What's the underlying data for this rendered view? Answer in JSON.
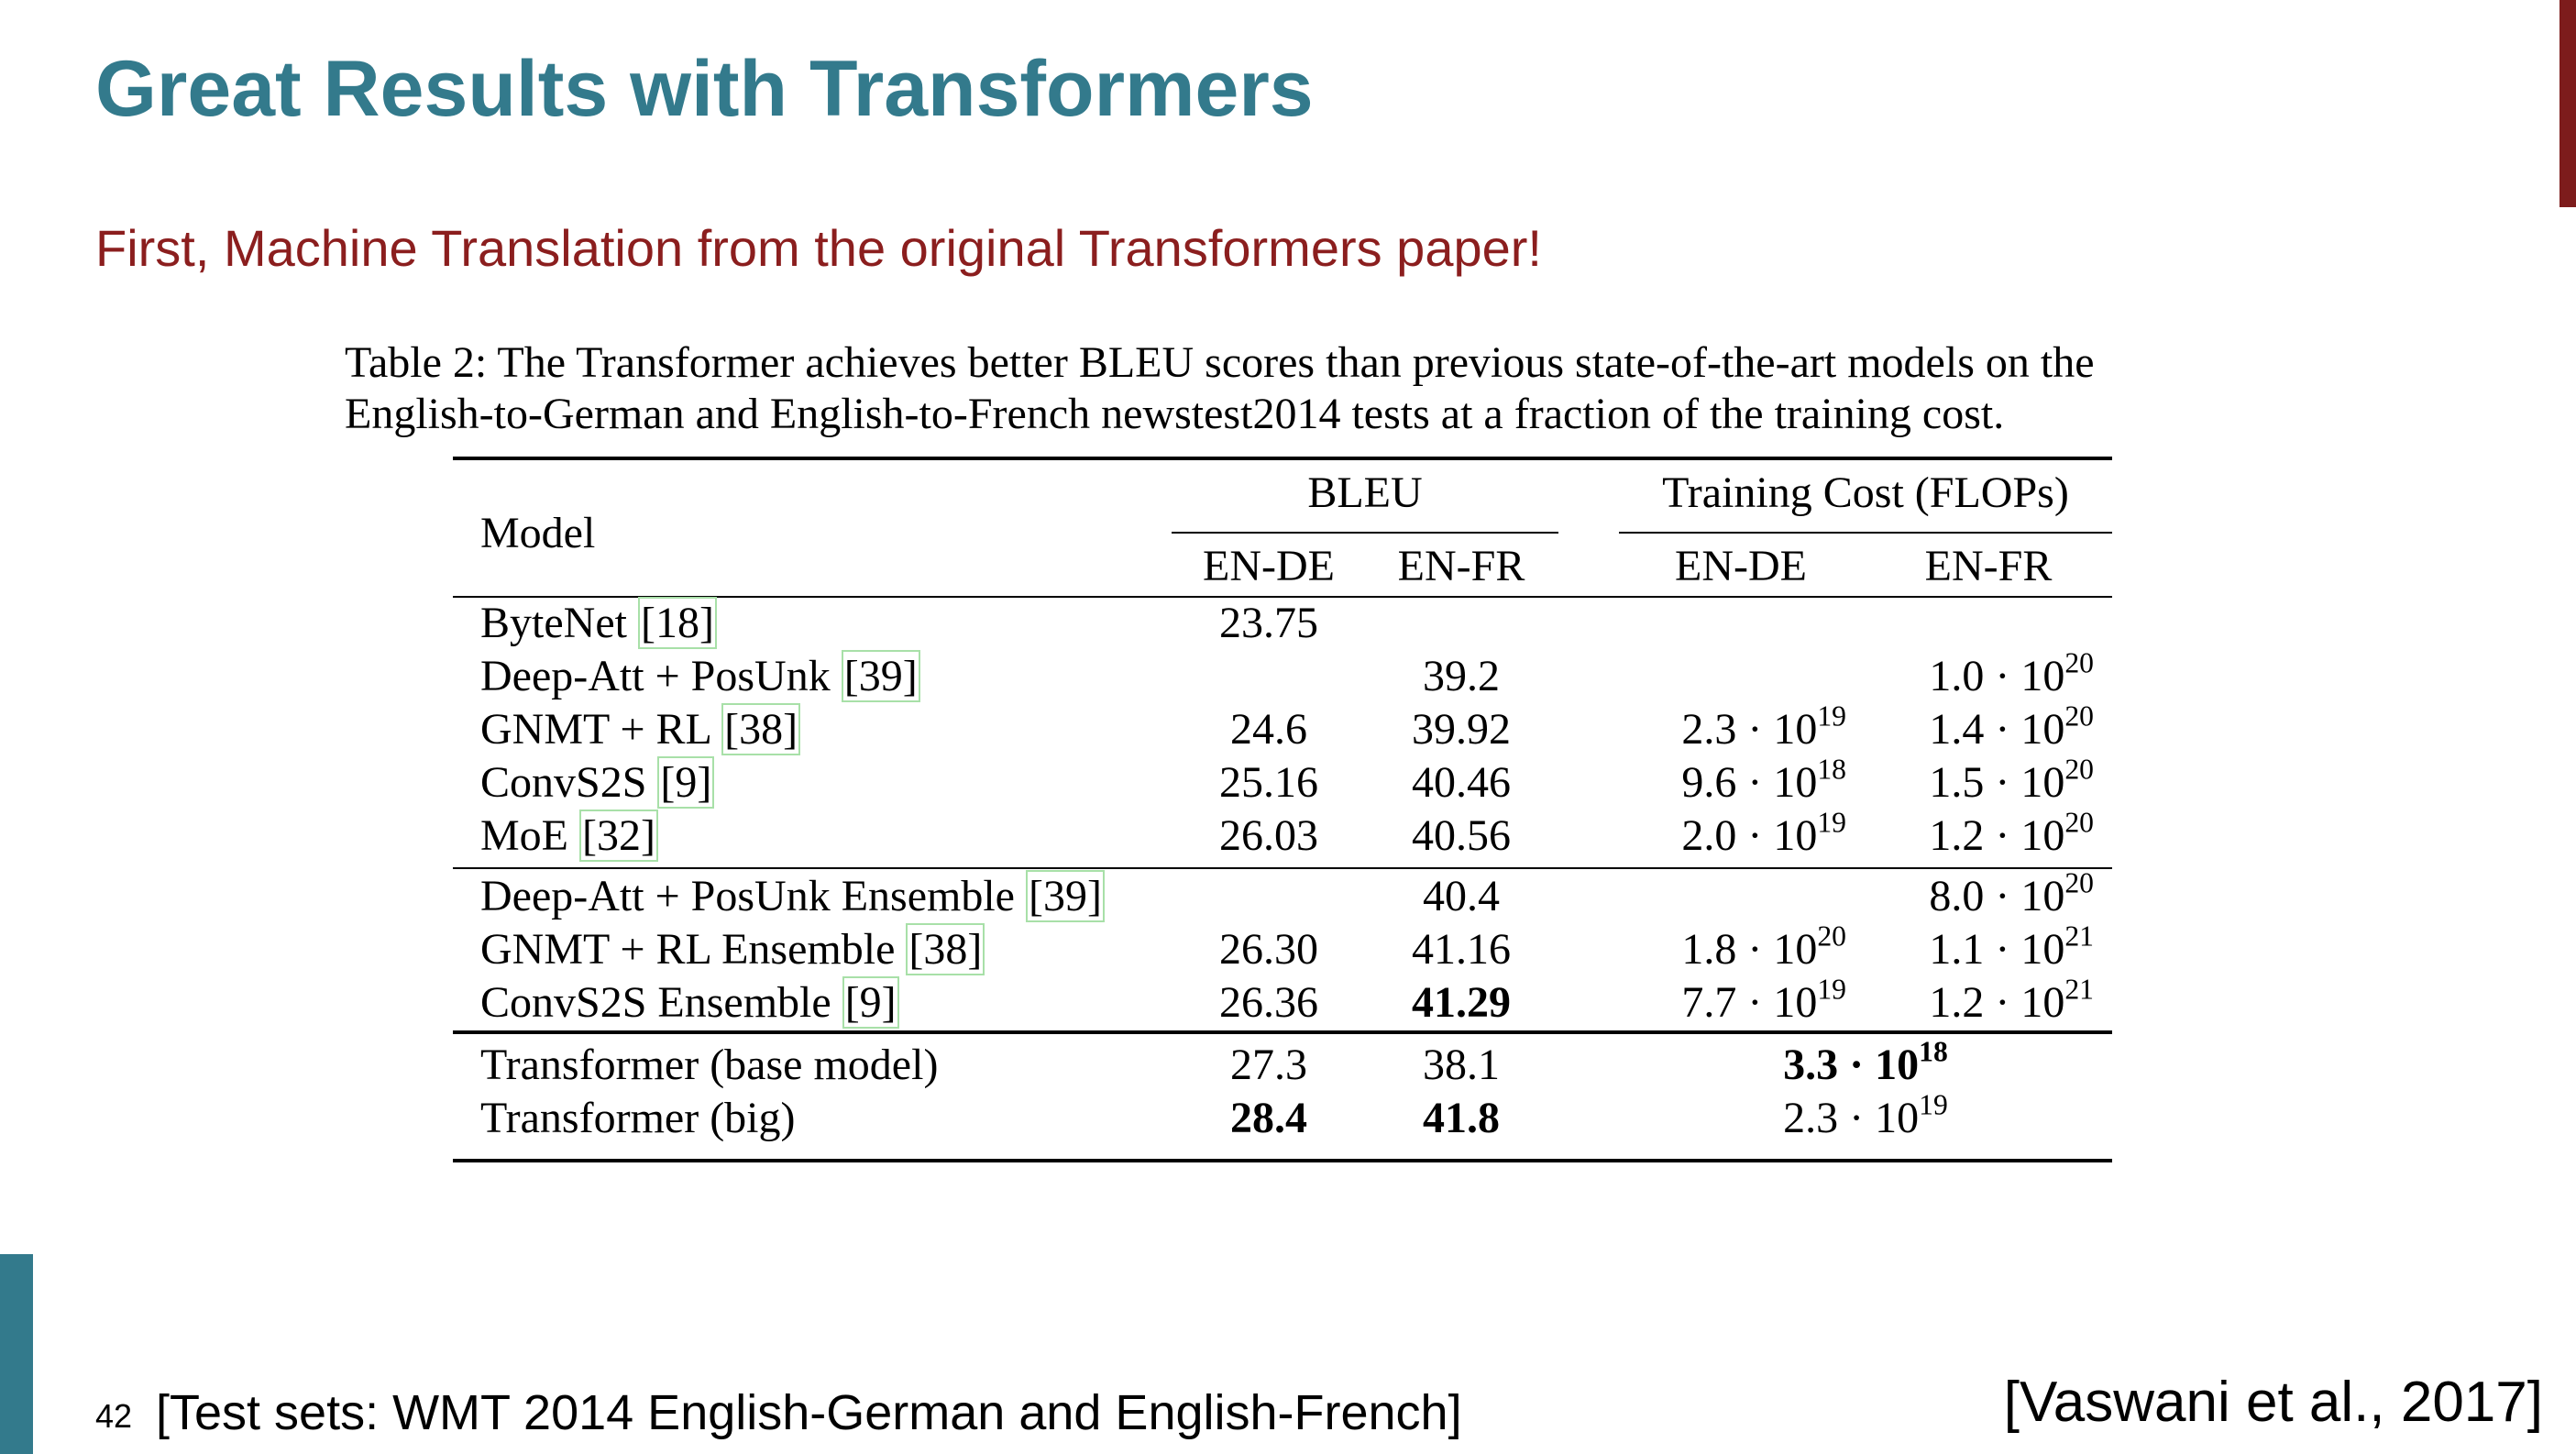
{
  "slide": {
    "title": "Great Results with Transformers",
    "subtitle": "First, Machine Translation from the original Transformers paper!",
    "page_number": "42",
    "footer_left": "[Test sets: WMT 2014 English-German and English-French]",
    "footer_right": "[Vaswani et al., 2017]",
    "colors": {
      "title": "#337a8c",
      "subtitle": "#8b1e1e",
      "right_bar": "#7d1c1c",
      "left_bar": "#337a8c"
    }
  },
  "table": {
    "caption_line1": "Table 2: The Transformer achieves better BLEU scores than previous state-of-the-art models on the",
    "caption_line2": "English-to-German and English-to-French newstest2014 tests at a fraction of the training cost.",
    "header_model": "Model",
    "header_bleu": "BLEU",
    "header_cost": "Training Cost (FLOPs)",
    "sub_bleu_ende": "EN-DE",
    "sub_bleu_enfr": "EN-FR",
    "sub_cost_ende": "EN-DE",
    "sub_cost_enfr": "EN-FR",
    "rows": [
      {
        "model": "ByteNet ",
        "ref": "[18]",
        "bleu_ende": "23.75",
        "bleu_enfr": "",
        "cost_ende": "",
        "cost_enfr": ""
      },
      {
        "model": "Deep-Att + PosUnk ",
        "ref": "[39]",
        "bleu_ende": "",
        "bleu_enfr": "39.2",
        "cost_ende": "",
        "cost_enfr": "1.0 · 10^20"
      },
      {
        "model": "GNMT + RL ",
        "ref": "[38]",
        "bleu_ende": "24.6",
        "bleu_enfr": "39.92",
        "cost_ende": "2.3 · 10^19",
        "cost_enfr": "1.4 · 10^20"
      },
      {
        "model": "ConvS2S ",
        "ref": "[9]",
        "bleu_ende": "25.16",
        "bleu_enfr": "40.46",
        "cost_ende": "9.6 · 10^18",
        "cost_enfr": "1.5 · 10^20"
      },
      {
        "model": "MoE ",
        "ref": "[32]",
        "bleu_ende": "26.03",
        "bleu_enfr": "40.56",
        "cost_ende": "2.0 · 10^19",
        "cost_enfr": "1.2 · 10^20"
      },
      {
        "model": "Deep-Att + PosUnk Ensemble ",
        "ref": "[39]",
        "bleu_ende": "",
        "bleu_enfr": "40.4",
        "cost_ende": "",
        "cost_enfr": "8.0 · 10^20"
      },
      {
        "model": "GNMT + RL Ensemble ",
        "ref": "[38]",
        "bleu_ende": "26.30",
        "bleu_enfr": "41.16",
        "cost_ende": "1.8 · 10^20",
        "cost_enfr": "1.1 · 10^21"
      },
      {
        "model": "ConvS2S Ensemble ",
        "ref": "[9]",
        "bleu_ende": "26.36",
        "bleu_enfr": "41.29",
        "bleu_enfr_bold": true,
        "cost_ende": "7.7 · 10^19",
        "cost_enfr": "1.2 · 10^21"
      },
      {
        "model": "Transformer (base model)",
        "ref": "",
        "bleu_ende": "27.3",
        "bleu_enfr": "38.1",
        "cost_merged": "3.3 · 10^18",
        "cost_merged_bold": true
      },
      {
        "model": "Transformer (big)",
        "ref": "",
        "bleu_ende": "28.4",
        "bleu_ende_bold": true,
        "bleu_enfr": "41.8",
        "bleu_enfr_bold": true,
        "cost_merged": "2.3 · 10^19"
      }
    ]
  }
}
